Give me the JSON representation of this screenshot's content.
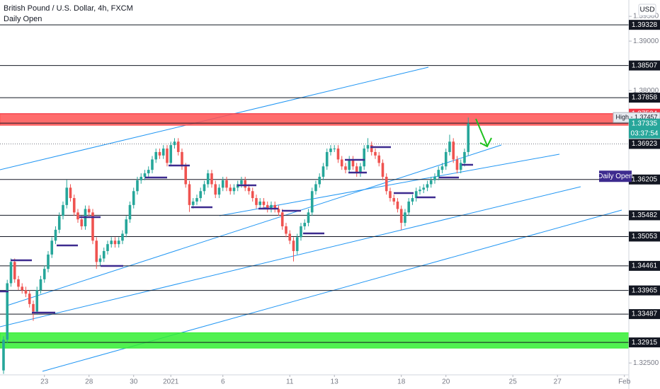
{
  "chart_data": {
    "type": "candlestick",
    "title": "British Pound / U.S. Dollar, 4h, FXCM",
    "subtitle": "Daily Open",
    "currency": "USD",
    "up_color": "#26a69a",
    "down_color": "#ef5350",
    "xlim": [
      -0.95,
      168.2
    ],
    "ylim": [
      1.3226,
      1.3983
    ],
    "yticks": [
      {
        "value": 1.395,
        "label": "1.39500"
      },
      {
        "value": 1.39,
        "label": "1.39000"
      },
      {
        "value": 1.38,
        "label": "1.38000"
      },
      {
        "value": 1.325,
        "label": "1.32500"
      }
    ],
    "xticks": [
      {
        "value": 11,
        "label": "23"
      },
      {
        "value": 23,
        "label": "28"
      },
      {
        "value": 35,
        "label": "30"
      },
      {
        "value": 45,
        "label": "2021"
      },
      {
        "value": 59,
        "label": "6"
      },
      {
        "value": 77,
        "label": "11"
      },
      {
        "value": 89,
        "label": "13"
      },
      {
        "value": 107,
        "label": "18"
      },
      {
        "value": 119,
        "label": "20"
      },
      {
        "value": 137,
        "label": "25"
      },
      {
        "value": 149,
        "label": "27"
      },
      {
        "value": 167,
        "label": "Feb"
      }
    ],
    "levels": [
      {
        "value": 1.39328,
        "color": "#131722"
      },
      {
        "value": 1.38507,
        "color": "#131722"
      },
      {
        "value": 1.37858,
        "color": "#131722"
      },
      {
        "value": 1.37534,
        "color": "#f23645"
      },
      {
        "value": 1.37343,
        "color": "#131722"
      },
      {
        "value": 1.36205,
        "color": "#131722"
      },
      {
        "value": 1.35482,
        "color": "#131722"
      },
      {
        "value": 1.35053,
        "color": "#131722"
      },
      {
        "value": 1.34461,
        "color": "#131722"
      },
      {
        "value": 1.33965,
        "color": "#131722"
      },
      {
        "value": 1.33487,
        "color": "#131722"
      },
      {
        "value": 1.32915,
        "color": "#131722"
      }
    ],
    "dotted_level": 1.36923,
    "zones": [
      {
        "from": 1.373,
        "to": 1.37534,
        "color": "#ff5252"
      },
      {
        "from": 1.328,
        "to": 1.3311,
        "color": "#33ee33"
      }
    ],
    "high": {
      "value": 1.37457,
      "label": "High - 1.37457"
    },
    "current_price": 1.37335,
    "current_color": "#26a69a",
    "countdown": "03:37:54",
    "daily_open": {
      "value": 1.3627,
      "label": "Daily Open",
      "color": "#3d2b8f"
    },
    "ohlc": [
      [
        1.3235,
        1.3304,
        1.3228,
        1.3297
      ],
      [
        1.3297,
        1.3418,
        1.329,
        1.3411
      ],
      [
        1.3411,
        1.3461,
        1.3404,
        1.3454
      ],
      [
        1.3454,
        1.3461,
        1.3412,
        1.3419
      ],
      [
        1.3419,
        1.3426,
        1.3397,
        1.3404
      ],
      [
        1.3404,
        1.3411,
        1.339,
        1.3397
      ],
      [
        1.3397,
        1.3404,
        1.3383,
        1.339
      ],
      [
        1.339,
        1.3397,
        1.3362,
        1.3369
      ],
      [
        1.3369,
        1.3376,
        1.3335,
        1.3354
      ],
      [
        1.3354,
        1.3404,
        1.3347,
        1.3397
      ],
      [
        1.3397,
        1.3426,
        1.339,
        1.3419
      ],
      [
        1.3419,
        1.3447,
        1.3412,
        1.344
      ],
      [
        1.344,
        1.3476,
        1.3433,
        1.3469
      ],
      [
        1.3469,
        1.3504,
        1.3462,
        1.3497
      ],
      [
        1.3497,
        1.3526,
        1.349,
        1.3519
      ],
      [
        1.3519,
        1.3554,
        1.3512,
        1.3547
      ],
      [
        1.3547,
        1.3576,
        1.354,
        1.3569
      ],
      [
        1.3569,
        1.362,
        1.3562,
        1.3604
      ],
      [
        1.3604,
        1.3611,
        1.3576,
        1.3583
      ],
      [
        1.3583,
        1.359,
        1.3547,
        1.3554
      ],
      [
        1.3554,
        1.3561,
        1.3533,
        1.354
      ],
      [
        1.354,
        1.3547,
        1.3519,
        1.3526
      ],
      [
        1.3526,
        1.3568,
        1.3519,
        1.3561
      ],
      [
        1.3561,
        1.3568,
        1.3547,
        1.3554
      ],
      [
        1.3554,
        1.3561,
        1.349,
        1.3497
      ],
      [
        1.3497,
        1.3504,
        1.344,
        1.3454
      ],
      [
        1.3454,
        1.3468,
        1.3447,
        1.3461
      ],
      [
        1.3461,
        1.3483,
        1.3454,
        1.3476
      ],
      [
        1.3476,
        1.3497,
        1.3469,
        1.349
      ],
      [
        1.349,
        1.3504,
        1.3483,
        1.3497
      ],
      [
        1.3497,
        1.3504,
        1.3483,
        1.349
      ],
      [
        1.349,
        1.3504,
        1.3483,
        1.3497
      ],
      [
        1.3497,
        1.3518,
        1.349,
        1.3511
      ],
      [
        1.3511,
        1.3547,
        1.3504,
        1.354
      ],
      [
        1.354,
        1.3576,
        1.3533,
        1.3569
      ],
      [
        1.3569,
        1.3604,
        1.3562,
        1.3597
      ],
      [
        1.3597,
        1.3626,
        1.359,
        1.3619
      ],
      [
        1.3619,
        1.3633,
        1.3612,
        1.3626
      ],
      [
        1.3626,
        1.364,
        1.3619,
        1.3633
      ],
      [
        1.3633,
        1.3647,
        1.3626,
        1.364
      ],
      [
        1.364,
        1.3668,
        1.3633,
        1.3661
      ],
      [
        1.3661,
        1.3683,
        1.3654,
        1.3676
      ],
      [
        1.3676,
        1.3683,
        1.3662,
        1.3669
      ],
      [
        1.3669,
        1.369,
        1.3662,
        1.3683
      ],
      [
        1.3683,
        1.369,
        1.3647,
        1.3654
      ],
      [
        1.3654,
        1.3697,
        1.3647,
        1.369
      ],
      [
        1.369,
        1.3704,
        1.3683,
        1.3697
      ],
      [
        1.3697,
        1.3704,
        1.3669,
        1.3676
      ],
      [
        1.3676,
        1.3683,
        1.364,
        1.3647
      ],
      [
        1.3647,
        1.3654,
        1.3604,
        1.3611
      ],
      [
        1.3611,
        1.3618,
        1.3555,
        1.3569
      ],
      [
        1.3569,
        1.3583,
        1.3562,
        1.3576
      ],
      [
        1.3576,
        1.359,
        1.3569,
        1.3583
      ],
      [
        1.3583,
        1.3604,
        1.3576,
        1.3597
      ],
      [
        1.3597,
        1.3618,
        1.359,
        1.3611
      ],
      [
        1.3611,
        1.364,
        1.3604,
        1.3633
      ],
      [
        1.3633,
        1.364,
        1.3604,
        1.3611
      ],
      [
        1.3611,
        1.3618,
        1.3583,
        1.359
      ],
      [
        1.359,
        1.3611,
        1.3583,
        1.3604
      ],
      [
        1.3604,
        1.3626,
        1.3597,
        1.3619
      ],
      [
        1.3619,
        1.3626,
        1.3597,
        1.3604
      ],
      [
        1.3604,
        1.3611,
        1.359,
        1.3597
      ],
      [
        1.3597,
        1.3611,
        1.359,
        1.3604
      ],
      [
        1.3604,
        1.3618,
        1.3597,
        1.3611
      ],
      [
        1.3611,
        1.3626,
        1.3604,
        1.3619
      ],
      [
        1.3619,
        1.3626,
        1.3597,
        1.3604
      ],
      [
        1.3604,
        1.3611,
        1.359,
        1.3597
      ],
      [
        1.3597,
        1.3604,
        1.3576,
        1.3583
      ],
      [
        1.3583,
        1.359,
        1.3562,
        1.3569
      ],
      [
        1.3569,
        1.3583,
        1.3562,
        1.3576
      ],
      [
        1.3576,
        1.3583,
        1.3562,
        1.3569
      ],
      [
        1.3569,
        1.3576,
        1.3554,
        1.3561
      ],
      [
        1.3561,
        1.3576,
        1.3554,
        1.3569
      ],
      [
        1.3569,
        1.3576,
        1.3554,
        1.3561
      ],
      [
        1.3561,
        1.3568,
        1.3547,
        1.3554
      ],
      [
        1.3554,
        1.3561,
        1.3519,
        1.3526
      ],
      [
        1.3526,
        1.3533,
        1.3504,
        1.3511
      ],
      [
        1.3511,
        1.3518,
        1.349,
        1.3497
      ],
      [
        1.3497,
        1.3504,
        1.3455,
        1.3476
      ],
      [
        1.3476,
        1.3511,
        1.3469,
        1.3504
      ],
      [
        1.3504,
        1.3533,
        1.3497,
        1.3526
      ],
      [
        1.3526,
        1.354,
        1.3519,
        1.3533
      ],
      [
        1.3533,
        1.3561,
        1.3526,
        1.3554
      ],
      [
        1.3554,
        1.3604,
        1.3547,
        1.3597
      ],
      [
        1.3597,
        1.3618,
        1.359,
        1.3611
      ],
      [
        1.3611,
        1.3633,
        1.3604,
        1.3626
      ],
      [
        1.3626,
        1.3654,
        1.3619,
        1.3647
      ],
      [
        1.3647,
        1.3683,
        1.364,
        1.3676
      ],
      [
        1.3676,
        1.369,
        1.3669,
        1.3683
      ],
      [
        1.3683,
        1.369,
        1.3676,
        1.3683
      ],
      [
        1.3683,
        1.369,
        1.3654,
        1.3661
      ],
      [
        1.3661,
        1.3668,
        1.364,
        1.3647
      ],
      [
        1.3647,
        1.3654,
        1.3633,
        1.364
      ],
      [
        1.364,
        1.3668,
        1.3633,
        1.3661
      ],
      [
        1.3661,
        1.3668,
        1.364,
        1.3647
      ],
      [
        1.3647,
        1.3654,
        1.3626,
        1.3633
      ],
      [
        1.3633,
        1.3654,
        1.3626,
        1.3647
      ],
      [
        1.3647,
        1.369,
        1.364,
        1.3683
      ],
      [
        1.3683,
        1.3704,
        1.3676,
        1.369
      ],
      [
        1.369,
        1.3697,
        1.3669,
        1.3676
      ],
      [
        1.3676,
        1.3683,
        1.3662,
        1.3669
      ],
      [
        1.3669,
        1.3676,
        1.3647,
        1.3654
      ],
      [
        1.3654,
        1.3661,
        1.3619,
        1.3626
      ],
      [
        1.3626,
        1.3633,
        1.359,
        1.3597
      ],
      [
        1.3597,
        1.3604,
        1.3576,
        1.3583
      ],
      [
        1.3583,
        1.359,
        1.3569,
        1.3576
      ],
      [
        1.3576,
        1.3583,
        1.3554,
        1.3561
      ],
      [
        1.3561,
        1.3568,
        1.3519,
        1.3533
      ],
      [
        1.3533,
        1.3561,
        1.3526,
        1.3554
      ],
      [
        1.3554,
        1.3583,
        1.3547,
        1.3576
      ],
      [
        1.3576,
        1.359,
        1.3569,
        1.3583
      ],
      [
        1.3583,
        1.3604,
        1.3576,
        1.3597
      ],
      [
        1.3597,
        1.3607,
        1.359,
        1.36
      ],
      [
        1.36,
        1.3611,
        1.3593,
        1.3604
      ],
      [
        1.3604,
        1.3618,
        1.3597,
        1.3611
      ],
      [
        1.3611,
        1.3626,
        1.3604,
        1.3619
      ],
      [
        1.3619,
        1.3633,
        1.3612,
        1.3626
      ],
      [
        1.3626,
        1.3647,
        1.3619,
        1.364
      ],
      [
        1.364,
        1.3654,
        1.3633,
        1.3647
      ],
      [
        1.3647,
        1.3683,
        1.364,
        1.3676
      ],
      [
        1.3676,
        1.3711,
        1.3669,
        1.3697
      ],
      [
        1.3697,
        1.3704,
        1.3654,
        1.3661
      ],
      [
        1.3661,
        1.3668,
        1.3633,
        1.364
      ],
      [
        1.364,
        1.3661,
        1.3633,
        1.3654
      ],
      [
        1.3654,
        1.3683,
        1.3647,
        1.3676
      ],
      [
        1.3676,
        1.37457,
        1.3669,
        1.37335
      ]
    ]
  }
}
